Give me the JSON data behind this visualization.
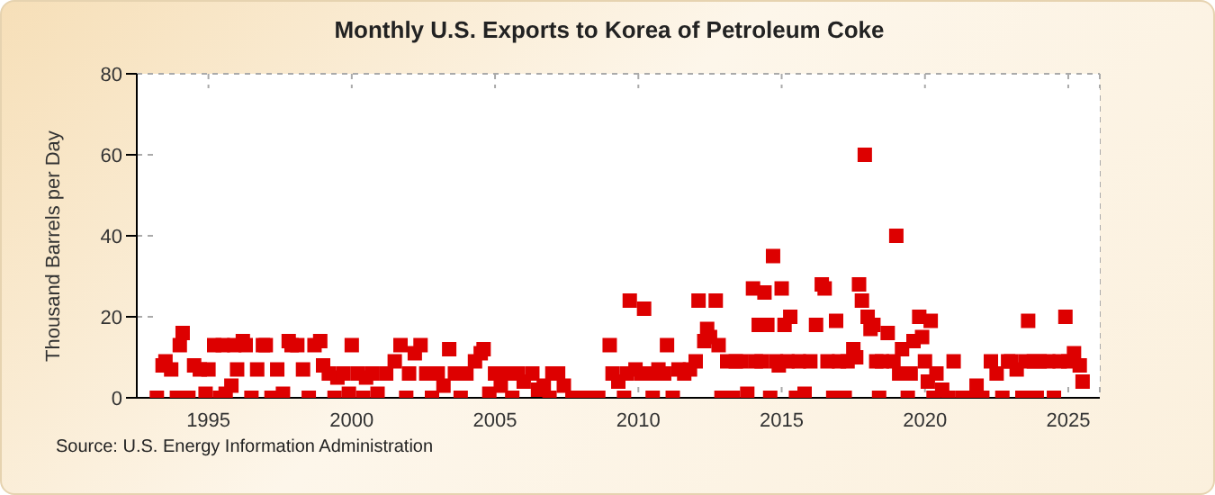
{
  "chart_data": {
    "type": "scatter",
    "title": "Monthly U.S. Exports to Korea of Petroleum Coke",
    "ylabel": "Thousand Barrels per Day",
    "annotations": [
      "Source: U.S. Energy Information Administration"
    ],
    "x": [
      1993.2,
      1993.4,
      1993.5,
      1993.7,
      1993.9,
      1994.0,
      1994.1,
      1994.3,
      1994.5,
      1994.7,
      1994.9,
      1995.0,
      1995.2,
      1995.4,
      1995.5,
      1995.6,
      1995.8,
      1995.9,
      1996.0,
      1996.2,
      1996.3,
      1996.5,
      1996.7,
      1996.9,
      1997.0,
      1997.2,
      1997.4,
      1997.6,
      1997.8,
      1997.9,
      1998.1,
      1998.3,
      1998.5,
      1998.7,
      1998.9,
      1999.0,
      1999.2,
      1999.4,
      1999.5,
      1999.7,
      1999.9,
      2000.0,
      2000.2,
      2000.4,
      2000.5,
      2000.7,
      2000.9,
      2001.2,
      2001.5,
      2001.7,
      2001.9,
      2002.0,
      2002.2,
      2002.4,
      2002.6,
      2002.8,
      2003.0,
      2003.2,
      2003.4,
      2003.6,
      2003.8,
      2004.0,
      2004.3,
      2004.5,
      2004.6,
      2004.8,
      2005.0,
      2005.2,
      2005.4,
      2005.6,
      2005.8,
      2006.0,
      2006.3,
      2006.5,
      2006.7,
      2006.9,
      2007.0,
      2007.2,
      2007.4,
      2007.7,
      2008.0,
      2008.3,
      2008.6,
      2009.0,
      2009.1,
      2009.3,
      2009.5,
      2009.6,
      2009.7,
      2009.9,
      2010.1,
      2010.2,
      2010.4,
      2010.5,
      2010.7,
      2010.9,
      2011.0,
      2011.2,
      2011.4,
      2011.6,
      2011.8,
      2012.0,
      2012.1,
      2012.3,
      2012.4,
      2012.5,
      2012.7,
      2012.8,
      2012.9,
      2013.1,
      2013.3,
      2013.4,
      2013.6,
      2013.8,
      2014.0,
      2014.1,
      2014.2,
      2014.3,
      2014.4,
      2014.5,
      2014.6,
      2014.7,
      2014.8,
      2014.9,
      2015.0,
      2015.1,
      2015.2,
      2015.3,
      2015.5,
      2015.6,
      2015.8,
      2016.0,
      2016.2,
      2016.4,
      2016.5,
      2016.6,
      2016.8,
      2016.9,
      2017.0,
      2017.2,
      2017.3,
      2017.5,
      2017.6,
      2017.7,
      2017.8,
      2017.9,
      2018.0,
      2018.1,
      2018.2,
      2018.3,
      2018.4,
      2018.5,
      2018.7,
      2018.9,
      2019.0,
      2019.1,
      2019.2,
      2019.4,
      2019.5,
      2019.6,
      2019.8,
      2019.9,
      2020.0,
      2020.1,
      2020.2,
      2020.3,
      2020.4,
      2020.6,
      2020.8,
      2021.0,
      2021.3,
      2021.6,
      2021.8,
      2022.0,
      2022.3,
      2022.5,
      2022.7,
      2022.9,
      2023.0,
      2023.2,
      2023.4,
      2023.5,
      2023.6,
      2023.8,
      2023.9,
      2024.0,
      2024.3,
      2024.5,
      2024.7,
      2024.9,
      2025.0,
      2025.2,
      2025.4,
      2025.5
    ],
    "series": [
      {
        "color": "#dd0000",
        "values": [
          0,
          8,
          9,
          7,
          0,
          13,
          16,
          0,
          8,
          7,
          1,
          7,
          13,
          0,
          13,
          1,
          3,
          13,
          7,
          14,
          13,
          0,
          7,
          13,
          13,
          0,
          7,
          1,
          14,
          13,
          13,
          7,
          0,
          13,
          14,
          8,
          6,
          0,
          5,
          6,
          1,
          13,
          6,
          0,
          5,
          6,
          1,
          6,
          9,
          13,
          0,
          6,
          11,
          13,
          6,
          0,
          6,
          3,
          12,
          6,
          0,
          6,
          9,
          11,
          12,
          1,
          6,
          3,
          6,
          0,
          6,
          4,
          6,
          2,
          3,
          0,
          6,
          6,
          3,
          0,
          0,
          0,
          0,
          13,
          6,
          4,
          0,
          6,
          24,
          7,
          6,
          22,
          6,
          0,
          7,
          6,
          13,
          0,
          7,
          6,
          7,
          9,
          24,
          14,
          17,
          15,
          24,
          13,
          0,
          9,
          0,
          9,
          9,
          1,
          27,
          9,
          18,
          9,
          26,
          18,
          0,
          35,
          9,
          8,
          27,
          18,
          9,
          20,
          0,
          9,
          1,
          9,
          18,
          28,
          27,
          9,
          0,
          19,
          9,
          0,
          9,
          12,
          10,
          28,
          24,
          60,
          20,
          17,
          18,
          9,
          0,
          9,
          16,
          9,
          40,
          6,
          12,
          0,
          6,
          14,
          20,
          15,
          9,
          4,
          19,
          0,
          6,
          2,
          0,
          9,
          0,
          0,
          3,
          0,
          9,
          6,
          0,
          9,
          9,
          7,
          0,
          9,
          19,
          9,
          0,
          9,
          9,
          0,
          9,
          20,
          9,
          11,
          8,
          4
        ]
      }
    ],
    "xlim": [
      1992.5,
      2026.1
    ],
    "xticks": [
      1995,
      2000,
      2005,
      2010,
      2015,
      2020,
      2025
    ],
    "ylim": [
      0,
      80
    ],
    "yticks": [
      0,
      20,
      40,
      60,
      80
    ],
    "grid": true,
    "marker": "square",
    "legend": false
  }
}
